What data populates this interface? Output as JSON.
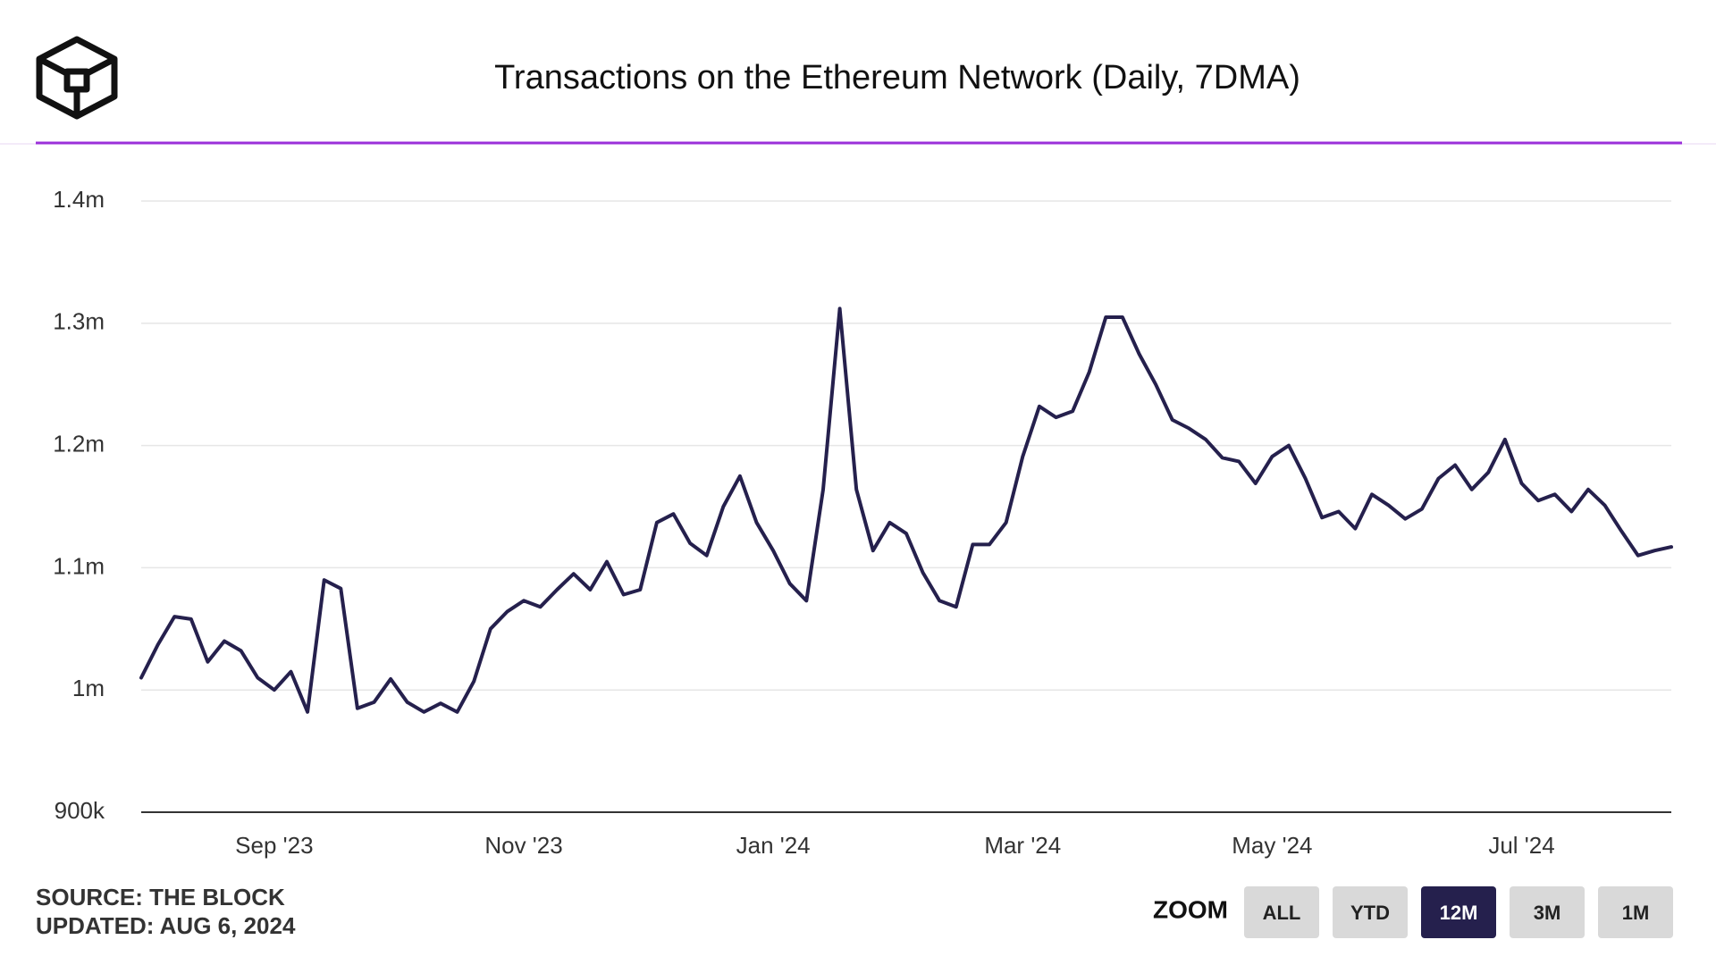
{
  "chart_data": {
    "type": "line",
    "title": "Transactions on the Ethereum Network (Daily, 7DMA)",
    "categories": [
      null,
      null,
      null,
      null,
      null,
      null,
      null,
      null,
      "Sep '23",
      null,
      null,
      null,
      null,
      null,
      null,
      null,
      null,
      null,
      null,
      null,
      null,
      null,
      null,
      "Nov '23",
      null,
      null,
      null,
      null,
      null,
      null,
      null,
      null,
      null,
      null,
      null,
      null,
      null,
      null,
      "Jan '24",
      null,
      null,
      null,
      null,
      null,
      null,
      null,
      null,
      null,
      null,
      null,
      null,
      null,
      null,
      "Mar '24",
      null,
      null,
      null,
      null,
      null,
      null,
      null,
      null,
      null,
      null,
      null,
      null,
      null,
      null,
      "May '24",
      null,
      null,
      null,
      null,
      null,
      null,
      null,
      null,
      null,
      null,
      null,
      null,
      null,
      null,
      "Jul '24",
      null,
      null,
      null,
      null,
      null,
      null,
      null,
      null,
      null
    ],
    "series": [
      {
        "name": "Transactions",
        "color": "#25204d",
        "values": [
          1010000,
          1037000,
          1060000,
          1058000,
          1023000,
          1040000,
          1032000,
          1010000,
          1000000,
          1015000,
          982000,
          1090000,
          1083000,
          985000,
          990000,
          1009000,
          990000,
          982000,
          989000,
          982000,
          1007000,
          1050000,
          1064000,
          1073000,
          1068000,
          1082000,
          1095000,
          1082000,
          1105000,
          1078000,
          1082000,
          1137000,
          1144000,
          1120000,
          1110000,
          1150000,
          1175000,
          1137000,
          1114000,
          1087000,
          1073000,
          1164000,
          1312000,
          1164000,
          1114000,
          1137000,
          1128000,
          1096000,
          1073000,
          1068000,
          1119000,
          1119000,
          1137000,
          1191000,
          1232000,
          1223000,
          1228000,
          1260000,
          1305000,
          1305000,
          1275000,
          1250000,
          1221000,
          1214000,
          1205000,
          1190000,
          1187000,
          1169000,
          1191000,
          1200000,
          1173000,
          1141000,
          1146000,
          1132000,
          1160000,
          1151000,
          1140000,
          1148000,
          1173000,
          1184000,
          1164000,
          1178000,
          1205000,
          1169000,
          1155000,
          1160000,
          1146000,
          1164000,
          1151000,
          1130000,
          1110000,
          1114000,
          1117000
        ]
      }
    ],
    "ylim": [
      900000,
      1400000
    ],
    "yticks": [
      {
        "value": 900000,
        "label": "900k"
      },
      {
        "value": 1000000,
        "label": "1m"
      },
      {
        "value": 1100000,
        "label": "1.1m"
      },
      {
        "value": 1200000,
        "label": "1.2m"
      },
      {
        "value": 1300000,
        "label": "1.3m"
      },
      {
        "value": 1400000,
        "label": "1.4m"
      }
    ],
    "grid": true
  },
  "source": "SOURCE: THE BLOCK",
  "updated": "UPDATED: AUG 6, 2024",
  "zoom": {
    "label": "ZOOM",
    "buttons": [
      {
        "label": "ALL",
        "active": false
      },
      {
        "label": "YTD",
        "active": false
      },
      {
        "label": "12M",
        "active": true
      },
      {
        "label": "3M",
        "active": false
      },
      {
        "label": "1M",
        "active": false
      }
    ]
  }
}
